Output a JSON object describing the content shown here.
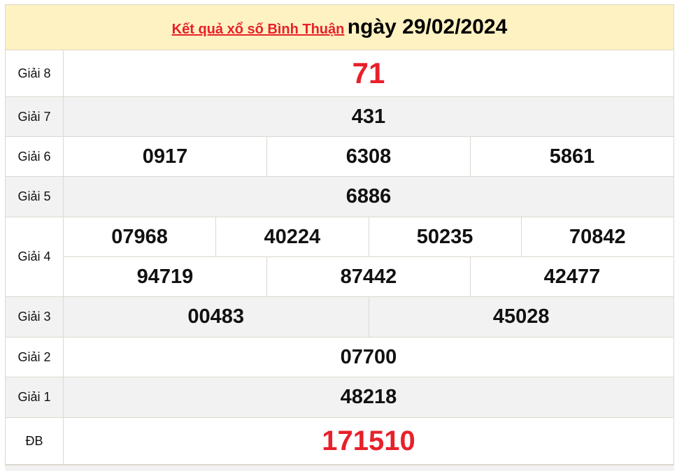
{
  "header": {
    "link_text": "Kết quả xổ số Bình Thuận",
    "date_text": "ngày 29/02/2024"
  },
  "colors": {
    "accent_red": "#e8202a",
    "header_bg": "#fff2c2",
    "alt_row_bg": "#f2f2f2"
  },
  "prizes": {
    "g8": {
      "label": "Giải 8",
      "numbers": [
        "71"
      ]
    },
    "g7": {
      "label": "Giải 7",
      "numbers": [
        "431"
      ]
    },
    "g6": {
      "label": "Giải 6",
      "numbers": [
        "0917",
        "6308",
        "5861"
      ]
    },
    "g5": {
      "label": "Giải 5",
      "numbers": [
        "6886"
      ]
    },
    "g4": {
      "label": "Giải 4",
      "numbers": [
        "07968",
        "40224",
        "50235",
        "70842",
        "94719",
        "87442",
        "42477"
      ]
    },
    "g3": {
      "label": "Giải 3",
      "numbers": [
        "00483",
        "45028"
      ]
    },
    "g2": {
      "label": "Giải 2",
      "numbers": [
        "07700"
      ]
    },
    "g1": {
      "label": "Giải 1",
      "numbers": [
        "48218"
      ]
    },
    "db": {
      "label": "ĐB",
      "numbers": [
        "171510"
      ]
    }
  }
}
